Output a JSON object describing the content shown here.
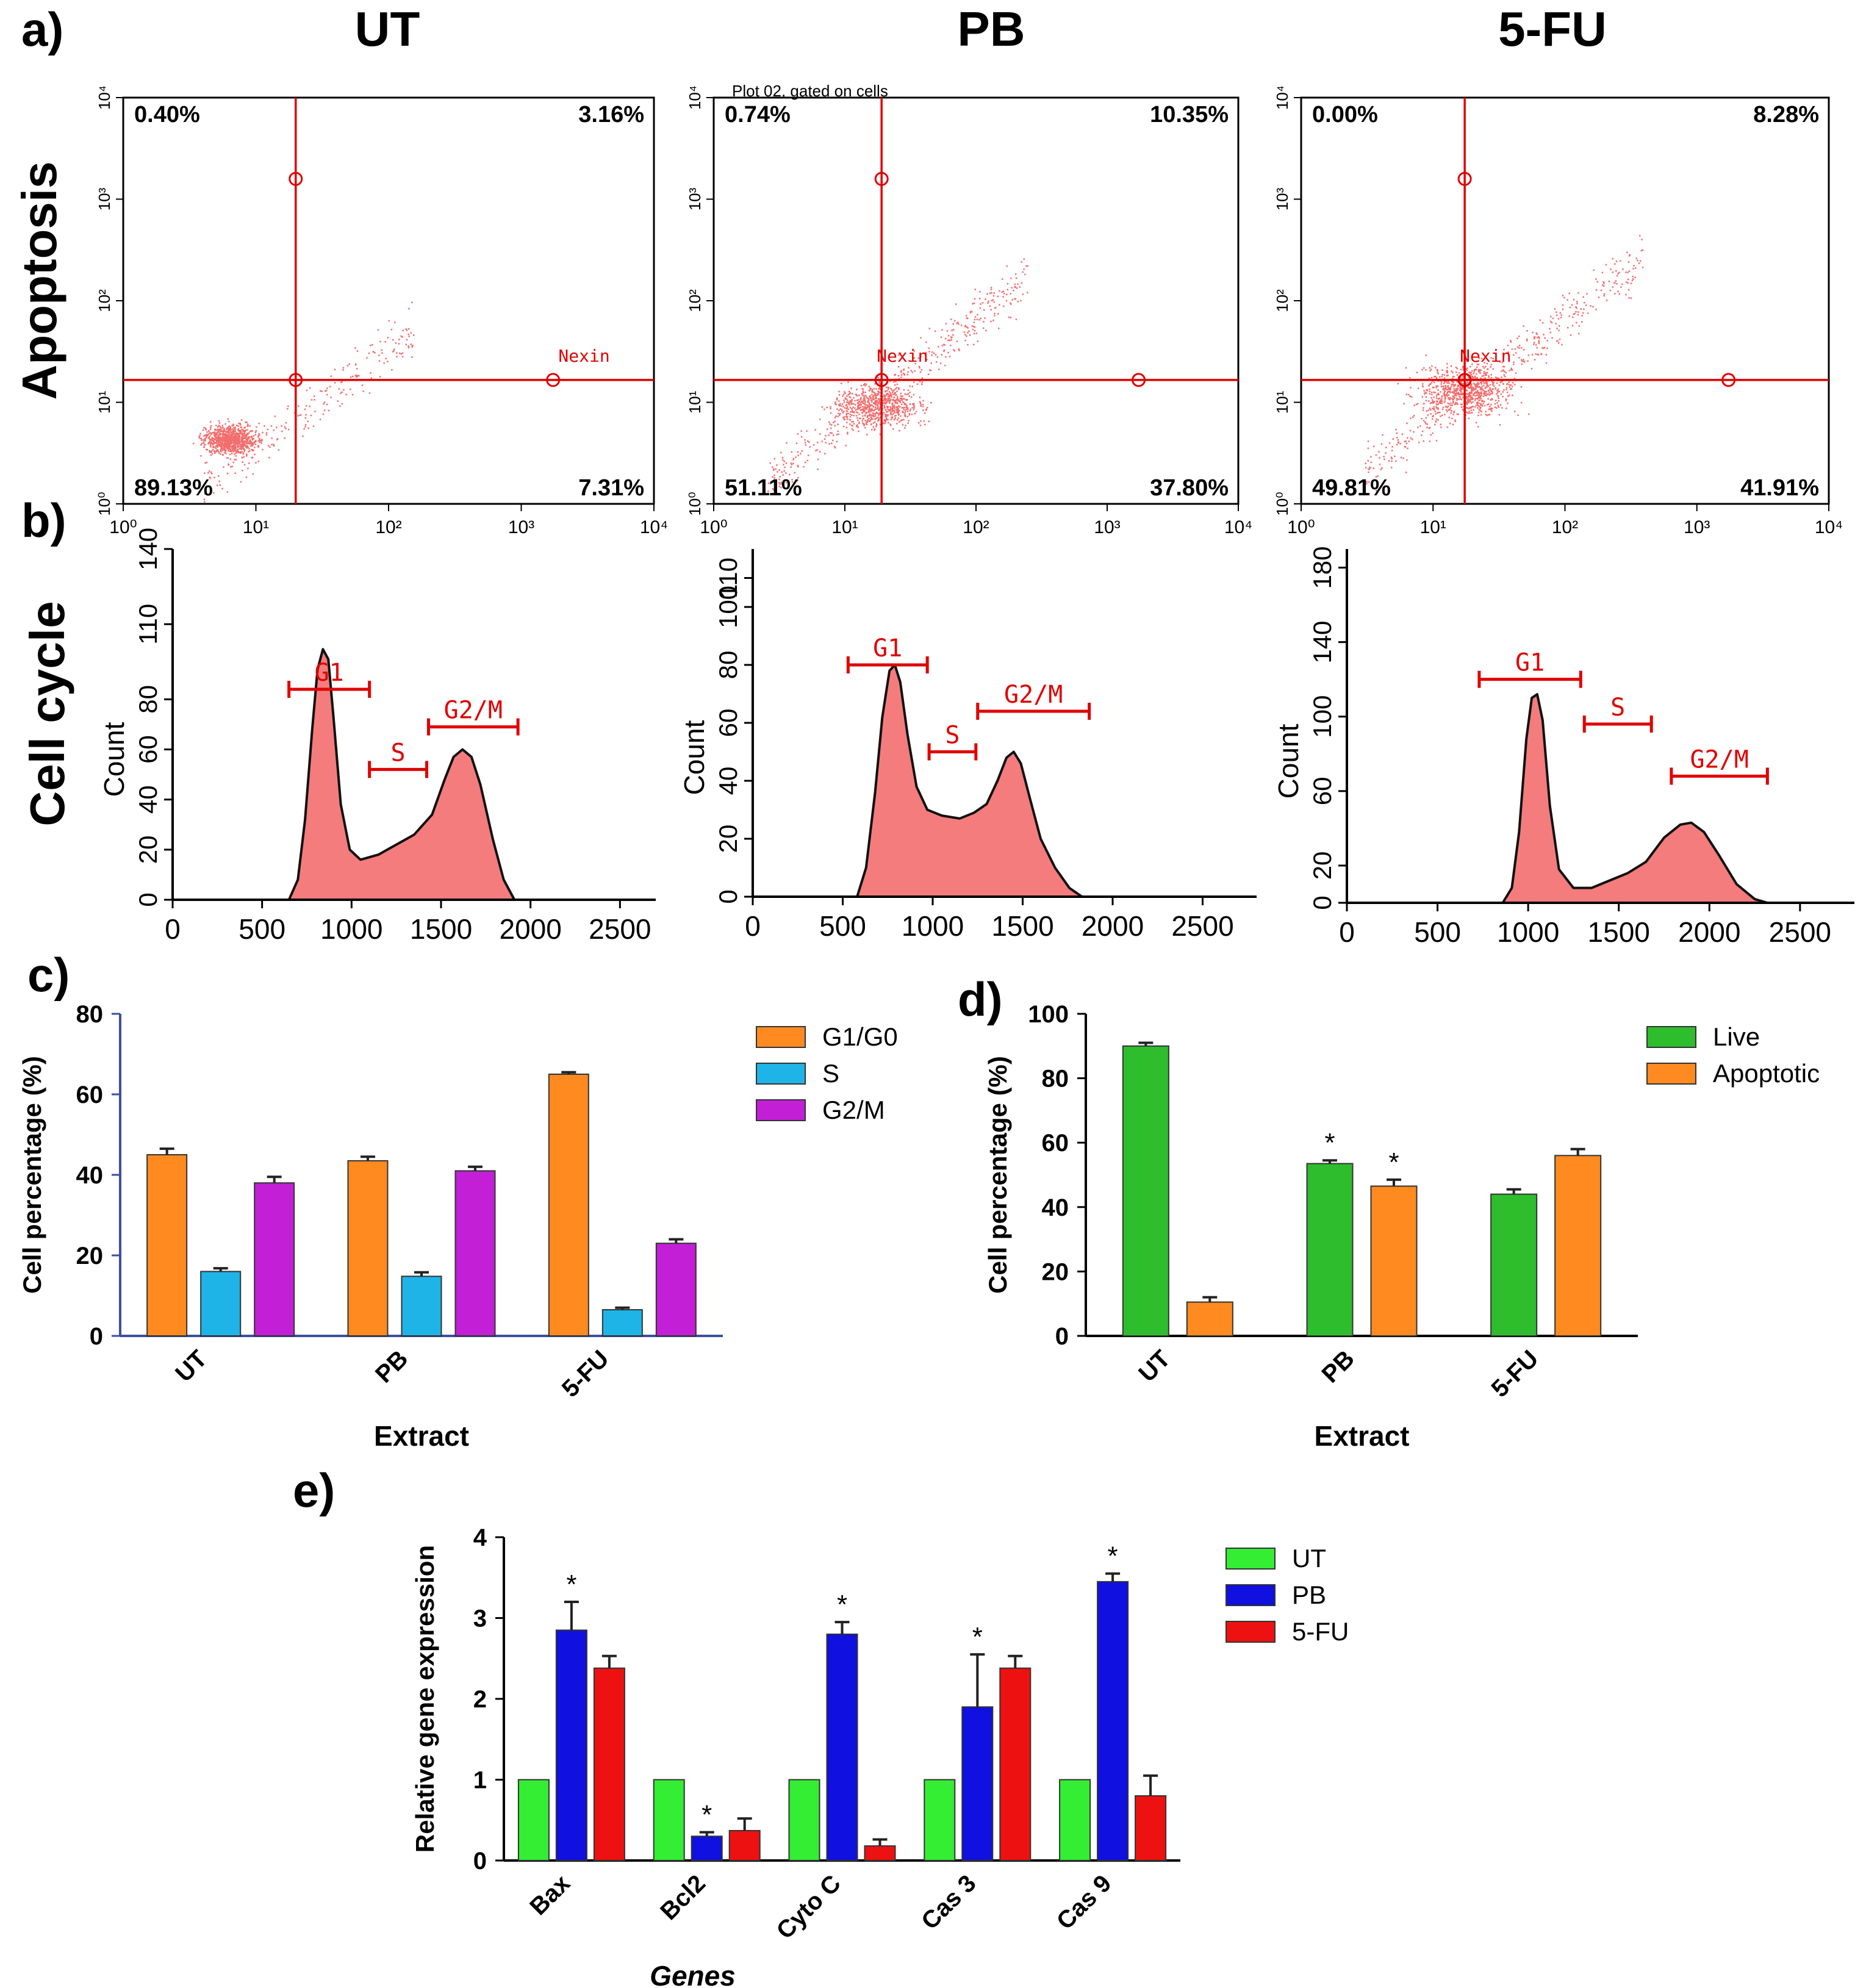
{
  "panel_labels": {
    "a": "a)",
    "b": "b)",
    "c": "c)",
    "d": "d)",
    "e": "e)"
  },
  "row_labels": {
    "apoptosis": "Apoptosis",
    "cell_cycle": "Cell cycle"
  },
  "col_headers": [
    "UT",
    "PB",
    "5-FU"
  ],
  "colors": {
    "quad_red": "#e00000",
    "hist_fill": "#f47c7c",
    "orange": "#ff8a1f",
    "cyan": "#1eb4e8",
    "purple": "#c21fd6",
    "green": "#2dbd2d",
    "lime": "#33ee33",
    "blue": "#1010e0",
    "red": "#ee1111",
    "axis_blue": "#3d4f9f"
  },
  "chart_data": [
    {
      "id": "a",
      "type": "scatter",
      "panels": [
        {
          "name": "UT",
          "top_text": "",
          "quadrants": {
            "UL": "0.40%",
            "UR": "3.16%",
            "LL": "89.13%",
            "LR": "7.31%"
          },
          "gate_label": "Nexin",
          "xticks": [
            "10⁰",
            "10¹",
            "10²",
            "10³",
            "10⁴"
          ],
          "yticks": [
            "10⁰",
            "10¹",
            "10²",
            "10³",
            "10⁴"
          ]
        },
        {
          "name": "PB",
          "top_text": "Plot 02, gated on cells",
          "quadrants": {
            "UL": "0.74%",
            "UR": "10.35%",
            "LL": "51.11%",
            "LR": "37.80%"
          },
          "gate_label": "Nexin",
          "xticks": [
            "10⁰",
            "10¹",
            "10²",
            "10³",
            "10⁴"
          ],
          "yticks": [
            "10⁰",
            "10¹",
            "10²",
            "10³",
            "10⁴"
          ]
        },
        {
          "name": "5-FU",
          "top_text": "",
          "quadrants": {
            "UL": "0.00%",
            "UR": "8.28%",
            "LL": "49.81%",
            "LR": "41.91%"
          },
          "gate_label": "Nexin",
          "xticks": [
            "10⁰",
            "10¹",
            "10²",
            "10³",
            "10⁴"
          ],
          "yticks": [
            "10⁰",
            "10¹",
            "10²",
            "10³",
            "10⁴"
          ]
        }
      ]
    },
    {
      "id": "b",
      "type": "area",
      "ylabel": "Count",
      "panels": [
        {
          "name": "UT",
          "xlim": [
            0,
            2700
          ],
          "ylim": [
            0,
            140
          ],
          "yticks": [
            0,
            20,
            40,
            60,
            80,
            110,
            140
          ],
          "xticks": [
            0,
            500,
            1000,
            1500,
            2000,
            2500
          ],
          "curve": [
            [
              650,
              0
            ],
            [
              700,
              8
            ],
            [
              740,
              32
            ],
            [
              780,
              68
            ],
            [
              810,
              92
            ],
            [
              840,
              100
            ],
            [
              870,
              96
            ],
            [
              900,
              72
            ],
            [
              940,
              38
            ],
            [
              990,
              20
            ],
            [
              1050,
              16
            ],
            [
              1150,
              18
            ],
            [
              1250,
              22
            ],
            [
              1350,
              26
            ],
            [
              1450,
              34
            ],
            [
              1520,
              48
            ],
            [
              1570,
              57
            ],
            [
              1620,
              60
            ],
            [
              1670,
              57
            ],
            [
              1720,
              46
            ],
            [
              1790,
              24
            ],
            [
              1850,
              8
            ],
            [
              1910,
              0
            ]
          ],
          "gates": [
            {
              "label": "G1",
              "start": 650,
              "end": 1100,
              "y": 84
            },
            {
              "label": "S",
              "start": 1100,
              "end": 1420,
              "y": 52
            },
            {
              "label": "G2/M",
              "start": 1430,
              "end": 1930,
              "y": 69
            }
          ]
        },
        {
          "name": "PB",
          "xlim": [
            0,
            2800
          ],
          "ylim": [
            0,
            120
          ],
          "yticks": [
            0,
            20,
            40,
            60,
            80,
            100,
            110
          ],
          "xticks": [
            0,
            500,
            1000,
            1500,
            2000,
            2500
          ],
          "curve": [
            [
              580,
              0
            ],
            [
              630,
              10
            ],
            [
              680,
              36
            ],
            [
              720,
              62
            ],
            [
              760,
              78
            ],
            [
              790,
              80
            ],
            [
              820,
              74
            ],
            [
              860,
              56
            ],
            [
              910,
              38
            ],
            [
              970,
              30
            ],
            [
              1050,
              28
            ],
            [
              1150,
              27
            ],
            [
              1230,
              29
            ],
            [
              1300,
              32
            ],
            [
              1360,
              40
            ],
            [
              1410,
              48
            ],
            [
              1450,
              50
            ],
            [
              1490,
              46
            ],
            [
              1540,
              34
            ],
            [
              1600,
              20
            ],
            [
              1680,
              10
            ],
            [
              1760,
              3
            ],
            [
              1830,
              0
            ]
          ],
          "gates": [
            {
              "label": "G1",
              "start": 530,
              "end": 970,
              "y": 80
            },
            {
              "label": "S",
              "start": 980,
              "end": 1240,
              "y": 50
            },
            {
              "label": "G2/M",
              "start": 1250,
              "end": 1870,
              "y": 64
            }
          ]
        },
        {
          "name": "5-FU",
          "xlim": [
            0,
            2800
          ],
          "ylim": [
            0,
            190
          ],
          "yticks": [
            0,
            20,
            60,
            100,
            140,
            180
          ],
          "xticks": [
            0,
            500,
            1000,
            1500,
            2000,
            2500
          ],
          "curve": [
            [
              860,
              0
            ],
            [
              910,
              8
            ],
            [
              950,
              38
            ],
            [
              990,
              88
            ],
            [
              1020,
              110
            ],
            [
              1050,
              112
            ],
            [
              1080,
              98
            ],
            [
              1120,
              52
            ],
            [
              1170,
              18
            ],
            [
              1250,
              8
            ],
            [
              1350,
              8
            ],
            [
              1450,
              12
            ],
            [
              1550,
              16
            ],
            [
              1650,
              22
            ],
            [
              1750,
              35
            ],
            [
              1840,
              42
            ],
            [
              1900,
              43
            ],
            [
              1970,
              38
            ],
            [
              2050,
              26
            ],
            [
              2150,
              10
            ],
            [
              2250,
              2
            ],
            [
              2320,
              0
            ]
          ],
          "gates": [
            {
              "label": "G1",
              "start": 730,
              "end": 1290,
              "y": 120
            },
            {
              "label": "S",
              "start": 1310,
              "end": 1680,
              "y": 96
            },
            {
              "label": "G2/M",
              "start": 1790,
              "end": 2320,
              "y": 68
            }
          ]
        }
      ]
    },
    {
      "id": "c",
      "type": "bar",
      "categories": [
        "UT",
        "PB",
        "5-FU"
      ],
      "ylim": [
        0,
        80
      ],
      "yticks": [
        0,
        20,
        40,
        60,
        80
      ],
      "ylabel": "Cell percentage (%)",
      "xlabel": "Extract",
      "series": [
        {
          "name": "G1/G0",
          "color": "#ff8a1f",
          "values": [
            45,
            43.5,
            65
          ],
          "errors": [
            1.5,
            1,
            0.5
          ]
        },
        {
          "name": "S",
          "color": "#1eb4e8",
          "values": [
            16,
            14.8,
            6.5
          ],
          "errors": [
            0.8,
            1,
            0.5
          ]
        },
        {
          "name": "G2/M",
          "color": "#c21fd6",
          "values": [
            38,
            41,
            23
          ],
          "errors": [
            1.5,
            1,
            1
          ]
        }
      ]
    },
    {
      "id": "d",
      "type": "bar",
      "categories": [
        "UT",
        "PB",
        "5-FU"
      ],
      "ylim": [
        0,
        100
      ],
      "yticks": [
        0,
        20,
        40,
        60,
        80,
        100
      ],
      "ylabel": "Cell percentage (%)",
      "xlabel": "Extract",
      "series": [
        {
          "name": "Live",
          "color": "#2dbd2d",
          "values": [
            90,
            53.5,
            44
          ],
          "errors": [
            1,
            1,
            1.5
          ],
          "stars": [
            "",
            "*",
            ""
          ]
        },
        {
          "name": "Apoptotic",
          "color": "#ff8a1f",
          "values": [
            10.5,
            46.5,
            56
          ],
          "errors": [
            1.5,
            2,
            2
          ],
          "stars": [
            "",
            "*",
            ""
          ]
        }
      ]
    },
    {
      "id": "e",
      "type": "bar",
      "categories": [
        "Bax",
        "Bcl2",
        "Cyto C",
        "Cas 3",
        "Cas 9"
      ],
      "ylim": [
        0,
        4
      ],
      "yticks": [
        0,
        1,
        2,
        3,
        4
      ],
      "ylabel": "Relative gene expression",
      "xlabel": "Genes",
      "series": [
        {
          "name": "UT",
          "color": "#33ee33",
          "values": [
            1,
            1,
            1,
            1,
            1
          ],
          "errors": [
            0,
            0,
            0,
            0,
            0
          ],
          "stars": [
            "",
            "",
            "",
            "",
            ""
          ]
        },
        {
          "name": "PB",
          "color": "#1010e0",
          "values": [
            2.85,
            0.3,
            2.8,
            1.9,
            3.45
          ],
          "errors": [
            0.35,
            0.05,
            0.15,
            0.65,
            0.1
          ],
          "stars": [
            "*",
            "*",
            "*",
            "*",
            "*"
          ]
        },
        {
          "name": "5-FU",
          "color": "#ee1111",
          "values": [
            2.38,
            0.37,
            0.18,
            2.38,
            0.8
          ],
          "errors": [
            0.15,
            0.15,
            0.08,
            0.15,
            0.25
          ],
          "stars": [
            "",
            "",
            "",
            "",
            ""
          ]
        }
      ]
    }
  ]
}
